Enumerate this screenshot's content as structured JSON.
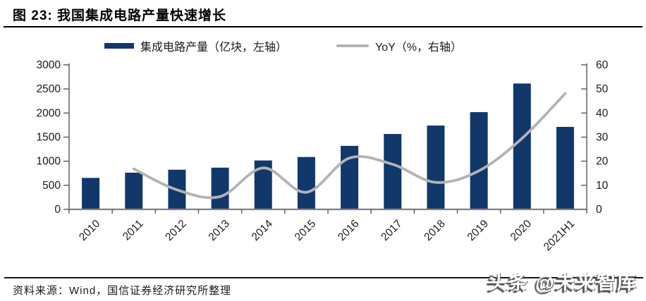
{
  "figure": {
    "title": "图 23:  我国集成电路产量快速增长",
    "source": "资料来源：Wind，国信证券经济研究所整理",
    "watermark": "头条 @未来智库"
  },
  "legend": [
    {
      "label": "集成电路产量（亿块，左轴）",
      "swatch": "bar-swatch-icon",
      "color": "#12386b"
    },
    {
      "label": "YoY（%，右轴）",
      "swatch": "line-swatch-icon",
      "color": "#b3b3b3"
    }
  ],
  "chart_data": {
    "type": "bar",
    "categories": [
      "2010",
      "2011",
      "2012",
      "2013",
      "2014",
      "2015",
      "2016",
      "2017",
      "2018",
      "2019",
      "2020",
      "2021H1"
    ],
    "series": [
      {
        "name": "集成电路产量（亿块，左轴）",
        "type": "bar",
        "axis": "left",
        "color": "#12386b",
        "values": [
          653,
          762,
          823,
          866,
          1015,
          1087,
          1318,
          1565,
          1740,
          2018,
          2613,
          1712
        ]
      },
      {
        "name": "YoY（%，右轴）",
        "type": "line",
        "axis": "right",
        "color": "#b3b3b3",
        "smooth": true,
        "values": [
          null,
          16.8,
          8.1,
          5.3,
          17.2,
          7.1,
          21.3,
          18.7,
          11.2,
          16,
          29.5,
          48.1
        ]
      }
    ],
    "left_axis": {
      "min": 0,
      "max": 3000,
      "step": 500,
      "ticks": [
        "0",
        "500",
        "1000",
        "1500",
        "2000",
        "2500",
        "3000"
      ]
    },
    "right_axis": {
      "min": 0,
      "max": 60,
      "step": 10,
      "ticks": [
        "0",
        "10",
        "20",
        "30",
        "40",
        "50",
        "60"
      ]
    },
    "grid": false,
    "legend_position": "top",
    "x_label_rotation": -45
  }
}
